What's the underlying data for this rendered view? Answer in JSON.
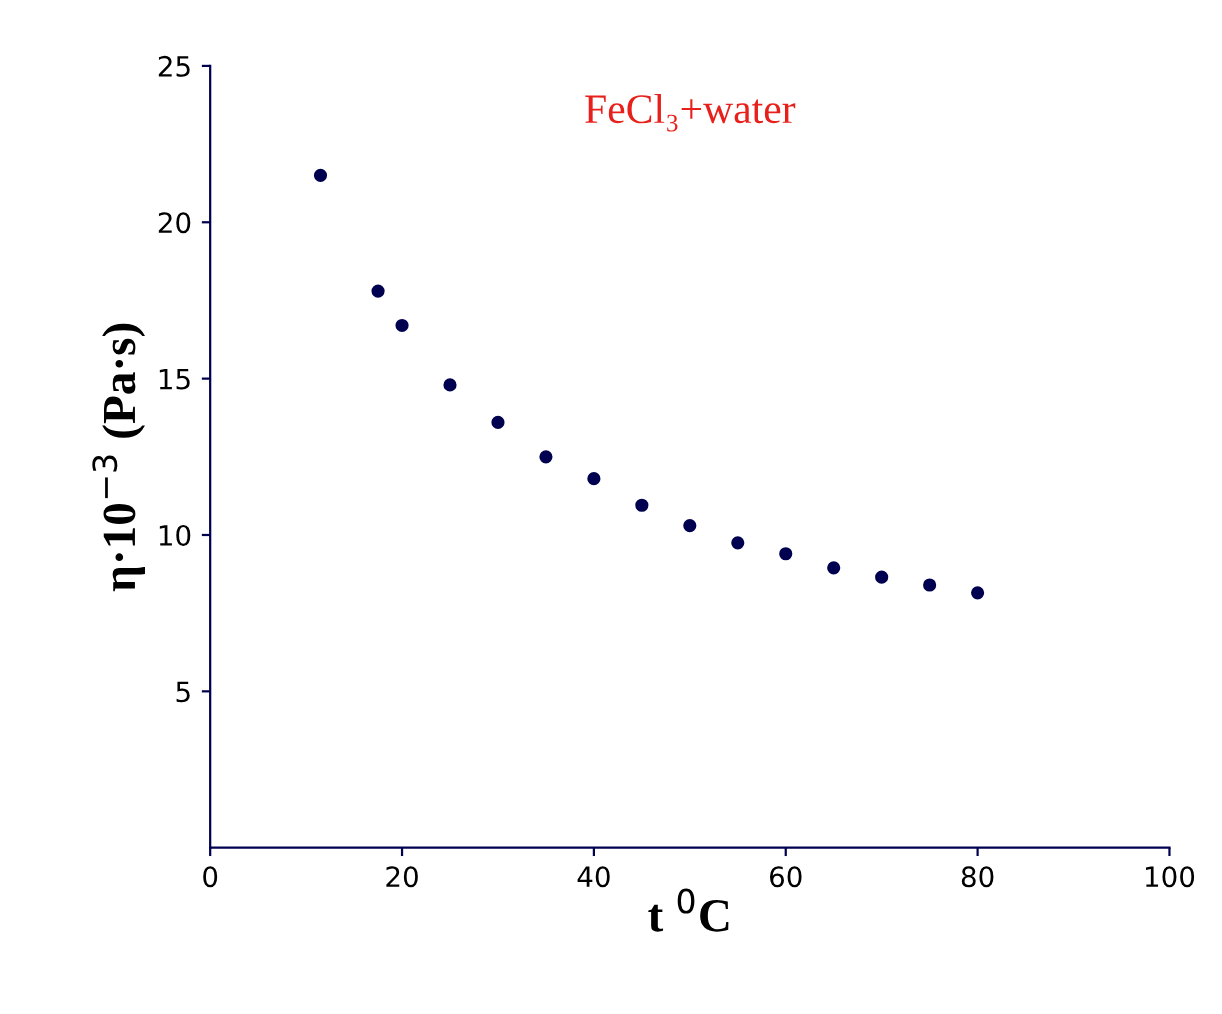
{
  "chart_data": {
    "type": "scatter",
    "title": "FeCl₃+water",
    "xlabel": "t $^{0}$C",
    "ylabel": "η·10$^{−3}$ (Pa·s)",
    "x": [
      11.5,
      17.5,
      20,
      25,
      30,
      35,
      40,
      45,
      50,
      55,
      60,
      65,
      70,
      75,
      80
    ],
    "series": [
      {
        "color": "#000050",
        "values": [
          21.5,
          17.8,
          16.7,
          14.8,
          13.6,
          12.5,
          11.8,
          10.95,
          10.3,
          9.75,
          9.4,
          8.95,
          8.65,
          8.4,
          8.15
        ]
      }
    ],
    "xlim": [
      0,
      100
    ],
    "ylim": [
      0,
      25
    ],
    "xticks": [
      0,
      20,
      40,
      60,
      80,
      100
    ],
    "yticks": [
      5,
      10,
      15,
      20,
      25
    ],
    "marker": "circle",
    "grid": false,
    "legend": false
  }
}
